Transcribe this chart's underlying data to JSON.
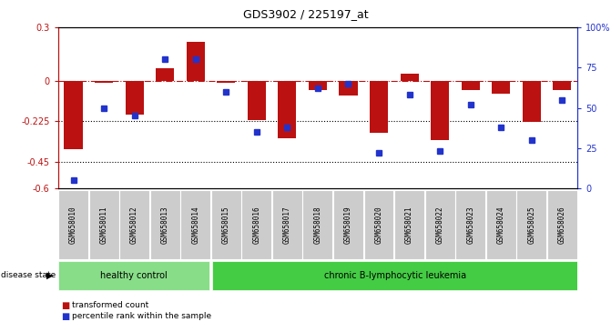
{
  "title": "GDS3902 / 225197_at",
  "samples": [
    "GSM658010",
    "GSM658011",
    "GSM658012",
    "GSM658013",
    "GSM658014",
    "GSM658015",
    "GSM658016",
    "GSM658017",
    "GSM658018",
    "GSM658019",
    "GSM658020",
    "GSM658021",
    "GSM658022",
    "GSM658023",
    "GSM658024",
    "GSM658025",
    "GSM658026"
  ],
  "bar_values": [
    -0.38,
    -0.01,
    -0.19,
    0.07,
    0.22,
    -0.01,
    -0.22,
    -0.32,
    -0.05,
    -0.08,
    -0.29,
    0.04,
    -0.33,
    -0.05,
    -0.07,
    -0.23,
    -0.05
  ],
  "blue_values": [
    5,
    50,
    45,
    80,
    80,
    60,
    35,
    38,
    62,
    65,
    22,
    58,
    23,
    52,
    38,
    30,
    55
  ],
  "healthy_count": 5,
  "ylim_left": [
    -0.6,
    0.3
  ],
  "ylim_right": [
    0,
    100
  ],
  "yticks_left": [
    -0.6,
    -0.45,
    -0.225,
    0.0,
    0.3
  ],
  "ytick_labels_left": [
    "-0.6",
    "-0.45",
    "-0.225",
    "0",
    "0.3"
  ],
  "yticks_right": [
    0,
    25,
    50,
    75,
    100
  ],
  "ytick_labels_right": [
    "0",
    "25",
    "50",
    "75",
    "100%"
  ],
  "hline_dashed_val": 0.0,
  "hlines_dotted": [
    -0.225,
    -0.45
  ],
  "bar_color": "#bb1111",
  "blue_color": "#2233cc",
  "healthy_color": "#88dd88",
  "leukemia_color": "#44cc44",
  "group_label_healthy": "healthy control",
  "group_label_leukemia": "chronic B-lymphocytic leukemia",
  "disease_state_label": "disease state",
  "legend_bar": "transformed count",
  "legend_blue": "percentile rank within the sample",
  "plot_bg": "#ffffff",
  "tick_area_bg": "#cccccc"
}
